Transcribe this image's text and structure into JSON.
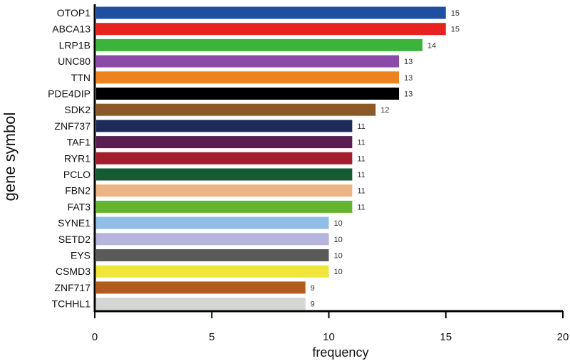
{
  "chart_data": {
    "type": "bar",
    "orientation": "horizontal",
    "xlabel": "frequency",
    "ylabel": "gene symbol",
    "xlim": [
      0,
      20
    ],
    "xticks": [
      0,
      5,
      10,
      15,
      20
    ],
    "grid": false,
    "legend": "none",
    "categories": [
      "OTOP1",
      "ABCA13",
      "LRP1B",
      "UNC80",
      "TTN",
      "PDE4DIP",
      "SDK2",
      "ZNF737",
      "TAF1",
      "RYR1",
      "PCLO",
      "FBN2",
      "FAT3",
      "SYNE1",
      "SETD2",
      "EYS",
      "CSMD3",
      "ZNF717",
      "TCHHL1"
    ],
    "values": [
      15,
      15,
      14,
      13,
      13,
      13,
      12,
      11,
      11,
      11,
      11,
      11,
      11,
      10,
      10,
      10,
      10,
      9,
      9
    ],
    "colors": [
      "#1f4fa0",
      "#e8231f",
      "#3cb43c",
      "#8a4aa6",
      "#f0821e",
      "#000000",
      "#8c5a28",
      "#1e2a5a",
      "#5a1e50",
      "#a01e2d",
      "#145a32",
      "#ecb482",
      "#64b432",
      "#91bee6",
      "#b4b4dc",
      "#5a5a5a",
      "#f0e637",
      "#b45a1e",
      "#d4d6d4"
    ]
  }
}
